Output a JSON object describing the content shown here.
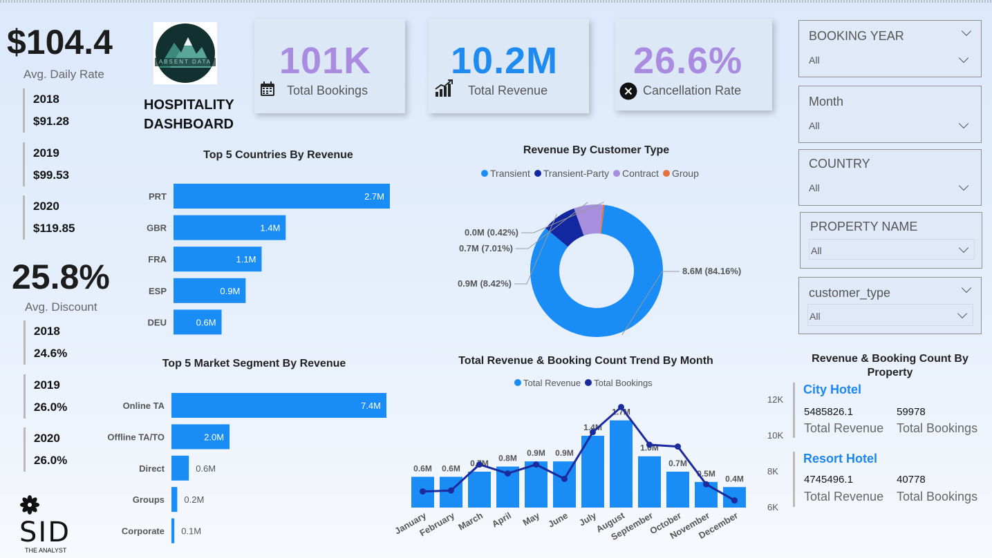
{
  "kpis": {
    "avg_daily_rate": {
      "value": "$104.4",
      "label": "Avg. Daily Rate",
      "years": [
        {
          "year": "2018",
          "value": "$91.28"
        },
        {
          "year": "2019",
          "value": "$99.53"
        },
        {
          "year": "2020",
          "value": "$119.85"
        }
      ]
    },
    "avg_discount": {
      "value": "25.8%",
      "label": "Avg. Discount",
      "years": [
        {
          "year": "2018",
          "value": "24.6%"
        },
        {
          "year": "2019",
          "value": "26.0%"
        },
        {
          "year": "2020",
          "value": "26.0%"
        }
      ]
    }
  },
  "brand": {
    "logo_text": "ABSENT DATA",
    "title_line1": "HOSPITALITY",
    "title_line2": "DASHBOARD",
    "sid_text": "SID",
    "sid_sub": "THE ANALYST"
  },
  "cards": [
    {
      "value": "101K",
      "label": "Total Bookings",
      "icon": "calendar-icon",
      "color": "#a98be0"
    },
    {
      "value": "10.2M",
      "label": "Total Revenue",
      "icon": "bar-chart-icon",
      "color": "#1f8af0"
    },
    {
      "value": "26.6%",
      "label": "Cancellation Rate",
      "icon": "close-circle-icon",
      "color": "#a98be0"
    }
  ],
  "slicers": [
    {
      "title": "BOOKING YEAR",
      "value": "All"
    },
    {
      "title": "Month",
      "value": "All"
    },
    {
      "title": "COUNTRY",
      "value": "All"
    },
    {
      "title": "PROPERTY NAME",
      "value": "All"
    },
    {
      "title": "customer_type",
      "value": "All"
    }
  ],
  "properties": {
    "title": "Revenue & Booking Count By Property",
    "items": [
      {
        "name": "City Hotel",
        "revenue": "5485826.1",
        "bookings": "59978",
        "revenue_label": "Total Revenue",
        "bookings_label": "Total Bookings"
      },
      {
        "name": "Resort Hotel",
        "revenue": "4745496.1",
        "bookings": "40778",
        "revenue_label": "Total Revenue",
        "bookings_label": "Total Bookings"
      }
    ]
  },
  "colors": {
    "bar": "#1a8cf6",
    "line": "#1b2a9c",
    "transient": "#1a8cf6",
    "transient_party": "#1327a0",
    "contract": "#a78fdd",
    "group": "#e8733a"
  },
  "chart_data": [
    {
      "id": "countries",
      "type": "bar",
      "orientation": "horizontal",
      "title": "Top 5 Countries By Revenue",
      "categories": [
        "PRT",
        "GBR",
        "FRA",
        "ESP",
        "DEU"
      ],
      "values": [
        2.7,
        1.4,
        1.1,
        0.9,
        0.6
      ],
      "labels": [
        "2.7M",
        "1.4M",
        "1.1M",
        "0.9M",
        "0.6M"
      ],
      "unit": "M"
    },
    {
      "id": "segments",
      "type": "bar",
      "orientation": "horizontal",
      "title": "Top 5 Market Segment By Revenue",
      "categories": [
        "Online TA",
        "Offline TA/TO",
        "Direct",
        "Groups",
        "Corporate"
      ],
      "values": [
        7.4,
        2.0,
        0.6,
        0.2,
        0.1
      ],
      "labels": [
        "7.4M",
        "2.0M",
        "0.6M",
        "0.2M",
        "0.1M"
      ],
      "unit": "M"
    },
    {
      "id": "customer_type",
      "type": "pie",
      "donut": true,
      "title": "Revenue By Customer Type",
      "categories": [
        "Transient",
        "Transient-Party",
        "Contract",
        "Group"
      ],
      "values": [
        8.6,
        0.9,
        0.7,
        0.04
      ],
      "percent": [
        84.16,
        8.42,
        7.01,
        0.42
      ],
      "labels": [
        "8.6M (84.16%)",
        "0.9M (8.42%)",
        "0.7M (7.01%)",
        "0.0M (0.42%)"
      ]
    },
    {
      "id": "trend",
      "type": "bar",
      "combo": "line",
      "title": "Total Revenue & Booking Count Trend By Month",
      "categories": [
        "January",
        "February",
        "March",
        "April",
        "May",
        "June",
        "July",
        "August",
        "September",
        "October",
        "November",
        "December"
      ],
      "series": [
        {
          "name": "Total Revenue",
          "type": "bar",
          "values": [
            0.6,
            0.6,
            0.7,
            0.8,
            0.9,
            0.9,
            1.4,
            1.7,
            1.0,
            0.7,
            0.5,
            0.4
          ],
          "labels": [
            "0.6M",
            "0.6M",
            "0.7M",
            "0.8M",
            "0.9M",
            "0.9M",
            "1.4M",
            "1.7M",
            "1.0M",
            "0.7M",
            "0.5M",
            "0.4M"
          ]
        },
        {
          "name": "Total Bookings",
          "type": "line",
          "axis": "right",
          "values": [
            6900,
            6950,
            8400,
            7900,
            8400,
            7600,
            10200,
            11600,
            9500,
            9400,
            7300,
            6400
          ]
        }
      ],
      "y_right": {
        "ticks": [
          "6K",
          "8K",
          "10K",
          "12K"
        ],
        "range": [
          6000,
          12000
        ]
      }
    }
  ]
}
